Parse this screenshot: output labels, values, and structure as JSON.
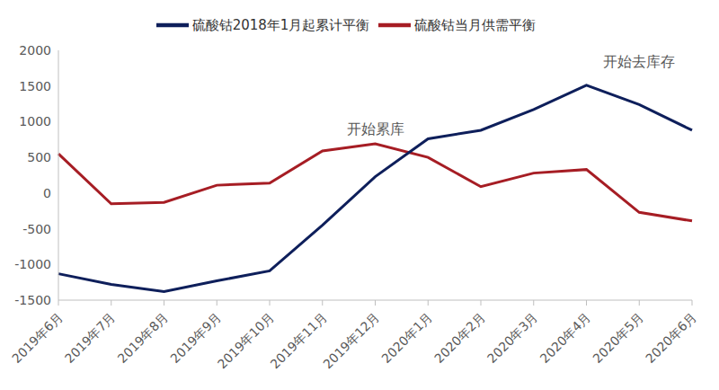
{
  "chart_data": {
    "type": "line",
    "categories": [
      "2019年6月",
      "2019年7月",
      "2019年8月",
      "2019年9月",
      "2019年10月",
      "2019年11月",
      "2019年12月",
      "2020年1月",
      "2020年2月",
      "2020年3月",
      "2020年4月",
      "2020年5月",
      "2020年6月"
    ],
    "series": [
      {
        "name": "硫酸钴当月供需平衡",
        "color": "#a61d24",
        "values": [
          550,
          -150,
          -130,
          110,
          140,
          590,
          690,
          500,
          90,
          280,
          330,
          -270,
          -390
        ]
      },
      {
        "name": "硫酸钴2018年1月起累计平衡",
        "color": "#0e1f5b",
        "values": [
          -1130,
          -1280,
          -1380,
          -1230,
          -1090,
          -450,
          230,
          760,
          880,
          1170,
          1510,
          1240,
          880
        ]
      }
    ],
    "ylim": [
      -1500,
      2000
    ],
    "yticks": [
      -1500,
      -1000,
      -500,
      0,
      500,
      1000,
      1500,
      2000
    ],
    "grid": false,
    "legend": "top",
    "annotations": [
      {
        "text": "开始累库",
        "x": "2019年12月",
        "y": 900
      },
      {
        "text": "开始去库存",
        "x": "2020年5月",
        "y": 1850
      }
    ]
  }
}
